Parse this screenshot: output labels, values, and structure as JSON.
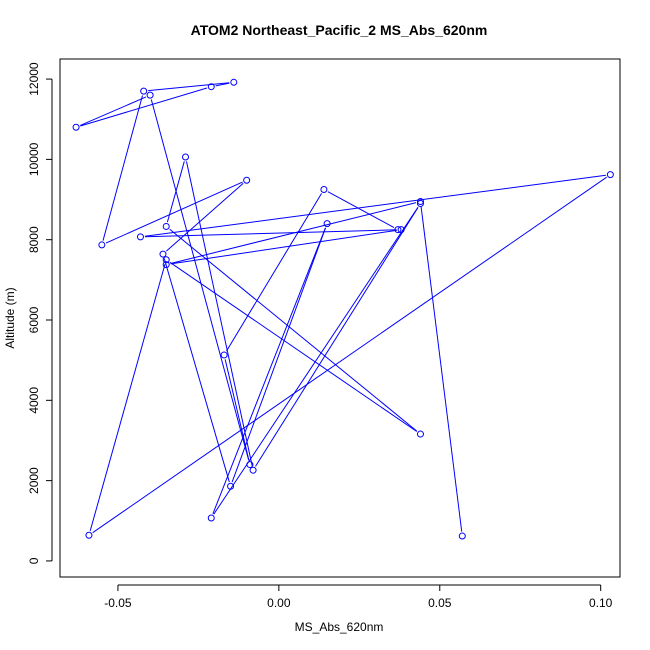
{
  "chart_data": {
    "type": "line",
    "title": "ATOM2 Northeast_Pacific_2 MS_Abs_620nm",
    "xlabel": "MS_Abs_620nm",
    "ylabel": "Altitude (m)",
    "xlim": [
      -0.068,
      0.106
    ],
    "ylim": [
      -400,
      12500
    ],
    "xticks": [
      -0.05,
      0.0,
      0.05,
      0.1
    ],
    "xtick_labels": [
      "-0.05",
      "0.00",
      "0.05",
      "0.10"
    ],
    "yticks": [
      0,
      2000,
      4000,
      6000,
      8000,
      10000,
      12000
    ],
    "ytick_labels": [
      "0",
      "2000",
      "4000",
      "6000",
      "8000",
      "10000",
      "12000"
    ],
    "series_color": "#0000ff",
    "marker": "open-circle",
    "grid": false,
    "x": [
      0.057,
      0.044,
      -0.035,
      0.038,
      -0.043,
      0.103,
      -0.059,
      -0.035,
      0.044,
      -0.035,
      -0.029,
      -0.008,
      0.044,
      -0.021,
      0.015,
      -0.015,
      -0.036,
      -0.01,
      -0.055,
      -0.042,
      -0.014,
      -0.021,
      -0.063,
      -0.04,
      -0.009,
      -0.017,
      0.014,
      0.037
    ],
    "y": [
      620,
      8950,
      7380,
      8250,
      8070,
      9620,
      640,
      7500,
      3160,
      8330,
      10060,
      2260,
      8900,
      1070,
      8400,
      1860,
      7640,
      9480,
      7870,
      11700,
      11920,
      11810,
      10800,
      11600,
      2400,
      5130,
      9250,
      8250
    ]
  }
}
